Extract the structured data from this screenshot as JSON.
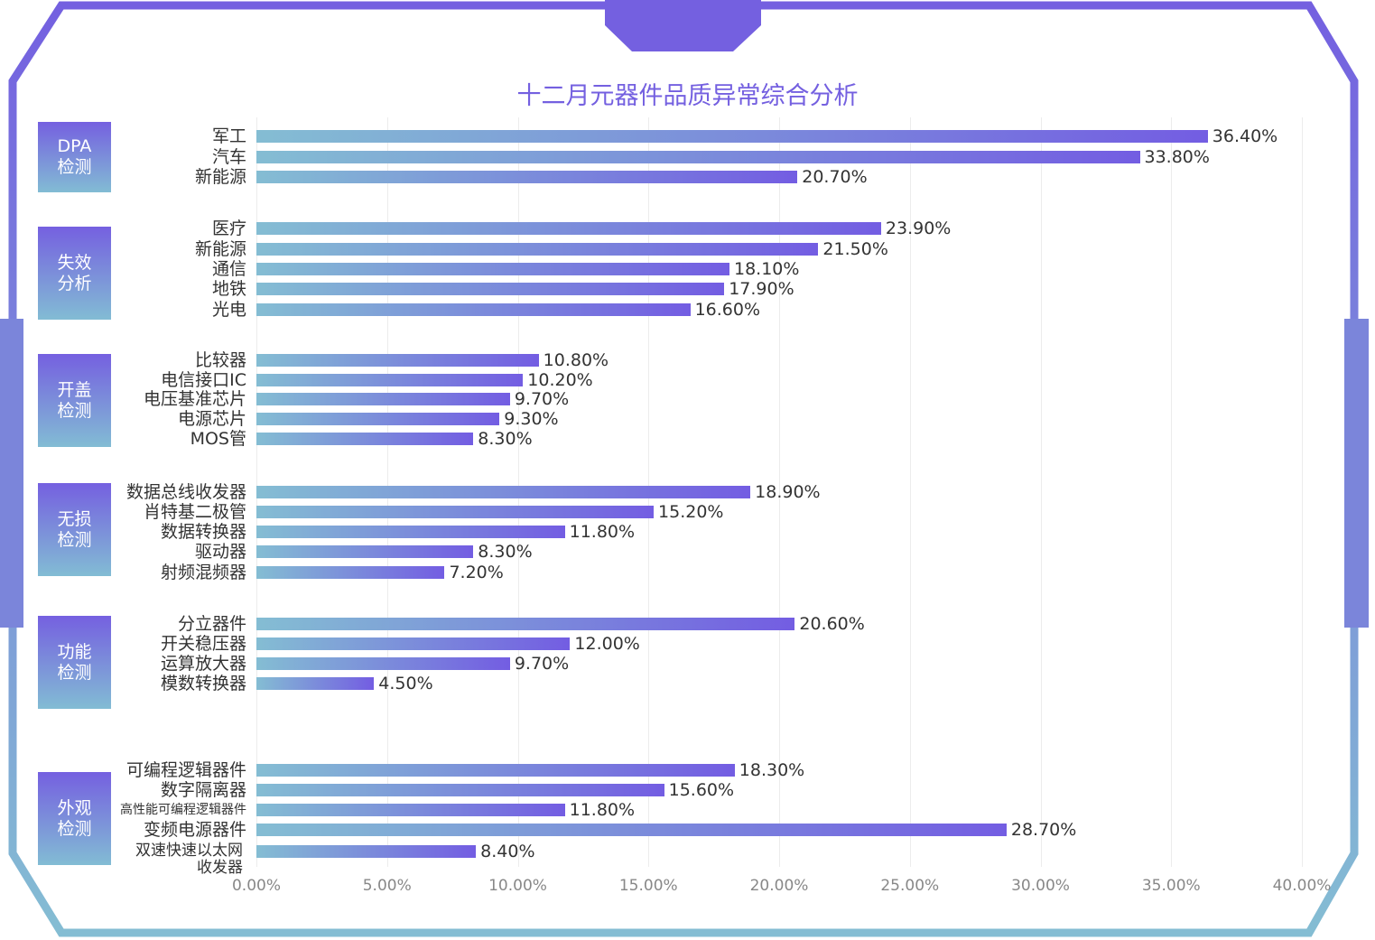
{
  "chart_data": {
    "type": "bar",
    "orientation": "horizontal",
    "title": "十二月元器件品质异常综合分析",
    "xlim": [
      0,
      40
    ],
    "x_ticks": [
      "0.00%",
      "5.00%",
      "10.00%",
      "15.00%",
      "20.00%",
      "25.00%",
      "30.00%",
      "35.00%",
      "40.00%"
    ],
    "grid": true,
    "colors": {
      "bar_start": "#84bdd3",
      "bar_end": "#735de2",
      "title": "#7460e0",
      "frame_top": "#7460e0",
      "frame_bottom": "#84bdd3"
    },
    "groups": [
      {
        "label": "DPA\n检测",
        "items": [
          {
            "category": "军工",
            "value": 36.4,
            "label": "36.40%"
          },
          {
            "category": "汽车",
            "value": 33.8,
            "label": "33.80%"
          },
          {
            "category": "新能源",
            "value": 20.7,
            "label": "20.70%"
          }
        ]
      },
      {
        "label": "失效\n分析",
        "items": [
          {
            "category": "医疗",
            "value": 23.9,
            "label": "23.90%"
          },
          {
            "category": "新能源",
            "value": 21.5,
            "label": "21.50%"
          },
          {
            "category": "通信",
            "value": 18.1,
            "label": "18.10%"
          },
          {
            "category": "地铁",
            "value": 17.9,
            "label": "17.90%"
          },
          {
            "category": "光电",
            "value": 16.6,
            "label": "16.60%"
          }
        ]
      },
      {
        "label": "开盖\n检测",
        "items": [
          {
            "category": "比较器",
            "value": 10.8,
            "label": "10.80%"
          },
          {
            "category": "电信接口IC",
            "value": 10.2,
            "label": "10.20%"
          },
          {
            "category": "电压基准芯片",
            "value": 9.7,
            "label": "9.70%"
          },
          {
            "category": "电源芯片",
            "value": 9.3,
            "label": "9.30%"
          },
          {
            "category": "MOS管",
            "value": 8.3,
            "label": "8.30%"
          }
        ]
      },
      {
        "label": "无损\n检测",
        "items": [
          {
            "category": "数据总线收发器",
            "value": 18.9,
            "label": "18.90%"
          },
          {
            "category": "肖特基二极管",
            "value": 15.2,
            "label": "15.20%"
          },
          {
            "category": "数据转换器",
            "value": 11.8,
            "label": "11.80%"
          },
          {
            "category": "驱动器",
            "value": 8.3,
            "label": "8.30%"
          },
          {
            "category": "射频混频器",
            "value": 7.2,
            "label": "7.20%"
          }
        ]
      },
      {
        "label": "功能\n检测",
        "items": [
          {
            "category": "分立器件",
            "value": 20.6,
            "label": "20.60%"
          },
          {
            "category": "开关稳压器",
            "value": 12.0,
            "label": "12.00%"
          },
          {
            "category": "运算放大器",
            "value": 9.7,
            "label": "9.70%"
          },
          {
            "category": "模数转换器",
            "value": 4.5,
            "label": "4.50%"
          }
        ]
      },
      {
        "label": "外观\n检测",
        "items": [
          {
            "category": "可编程逻辑器件",
            "value": 18.3,
            "label": "18.30%"
          },
          {
            "category": "数字隔离器",
            "value": 15.6,
            "label": "15.60%"
          },
          {
            "category": "高性能可编程逻辑器件",
            "value": 11.8,
            "label": "11.80%"
          },
          {
            "category": "变频电源器件",
            "value": 28.7,
            "label": "28.70%"
          },
          {
            "category": "双速快速以太网\n收发器",
            "value": 8.4,
            "label": "8.40%"
          }
        ]
      }
    ]
  }
}
